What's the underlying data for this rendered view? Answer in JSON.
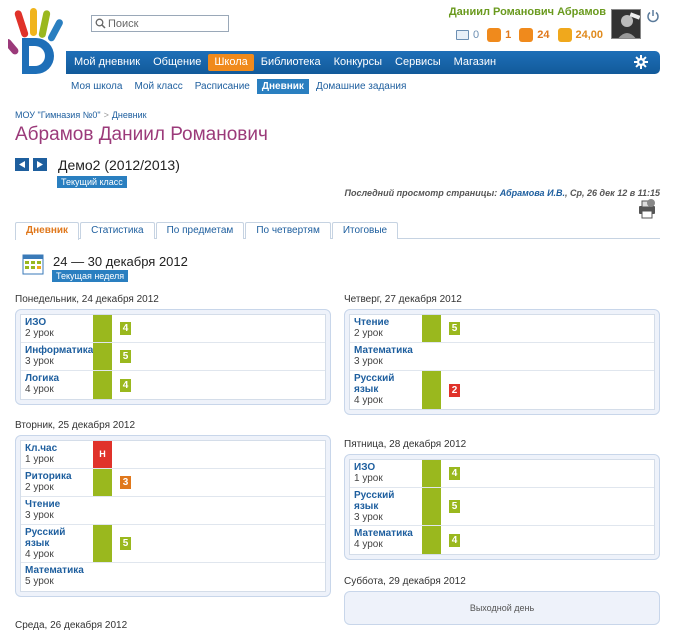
{
  "header": {
    "search_placeholder": "Поиск",
    "username": "Даниил Романович Абрамов",
    "stats": {
      "messages": "0",
      "friends": "1",
      "events": "24",
      "money": "24,00"
    }
  },
  "nav": {
    "items": [
      "Мой дневник",
      "Общение",
      "Школа",
      "Библиотека",
      "Конкурсы",
      "Сервисы",
      "Магазин"
    ],
    "active": "Школа"
  },
  "subnav": {
    "items": [
      "Моя школа",
      "Мой класс",
      "Расписание",
      "Дневник",
      "Домашние задания"
    ],
    "active": "Дневник"
  },
  "breadcrumb": {
    "school": "МОУ \"Гимназия №0\"",
    "sep": ">",
    "page": "Дневник"
  },
  "page_title": "Абрамов Даниил Романович",
  "class": {
    "name": "Демо2 (2012/2013)",
    "badge": "Текущий класс"
  },
  "last_view": {
    "prefix": "Последний просмотр страницы:",
    "user": "Абрамова И.В.",
    "when": ", Ср, 26 дек 12 в 11:15"
  },
  "tabs": [
    "Дневник",
    "Статистика",
    "По предметам",
    "По четвертям",
    "Итоговые"
  ],
  "week": {
    "title": "24 — 30 декабря 2012",
    "badge": "Текущая неделя"
  },
  "days": {
    "mon": {
      "title": "Понедельник, 24 декабря 2012",
      "rows": [
        {
          "subject": "ИЗО",
          "lesson": "2 урок",
          "mark": "4"
        },
        {
          "subject": "Информатика",
          "lesson": "3 урок",
          "mark": "5"
        },
        {
          "subject": "Логика",
          "lesson": "4 урок",
          "mark": "4"
        }
      ]
    },
    "tue": {
      "title": "Вторник, 25 декабря 2012",
      "rows": [
        {
          "subject": "Кл.час",
          "lesson": "1 урок",
          "absence": "Н"
        },
        {
          "subject": "Риторика",
          "lesson": "2 урок",
          "mark": "3"
        },
        {
          "subject": "Чтение",
          "lesson": "3 урок"
        },
        {
          "subject_l1": "Русский",
          "subject_l2": "язык",
          "lesson": "4 урок",
          "mark": "5"
        },
        {
          "subject": "Математика",
          "lesson": "5 урок"
        }
      ]
    },
    "wed": {
      "title": "Среда, 26 декабря 2012"
    },
    "thu": {
      "title": "Четверг, 27 декабря 2012",
      "rows": [
        {
          "subject": "Чтение",
          "lesson": "2 урок",
          "mark": "5"
        },
        {
          "subject": "Математика",
          "lesson": "3 урок"
        },
        {
          "subject_l1": "Русский",
          "subject_l2": "язык",
          "lesson": "4 урок",
          "mark": "2"
        }
      ]
    },
    "fri": {
      "title": "Пятница, 28 декабря 2012",
      "rows": [
        {
          "subject": "ИЗО",
          "lesson": "1 урок",
          "mark": "4"
        },
        {
          "subject_l1": "Русский",
          "subject_l2": "язык",
          "lesson": "3 урок",
          "mark": "5"
        },
        {
          "subject": "Математика",
          "lesson": "4 урок",
          "mark": "4"
        }
      ]
    },
    "sat": {
      "title": "Суббота, 29 декабря 2012",
      "dayoff": "Выходной день"
    }
  }
}
